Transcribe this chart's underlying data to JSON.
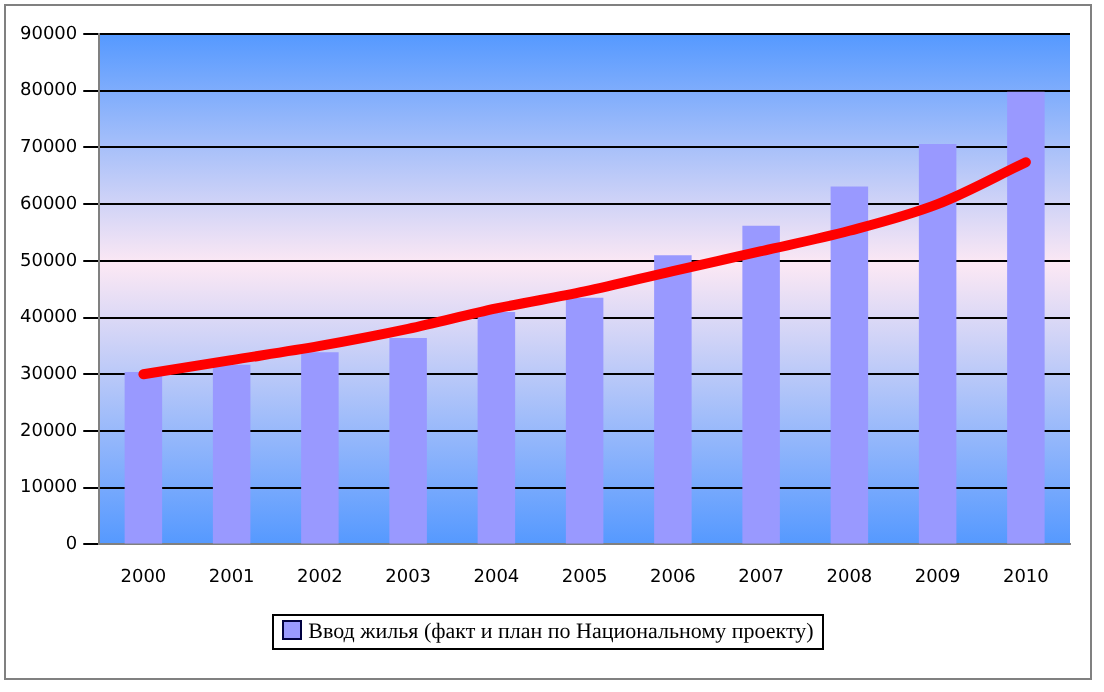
{
  "chart_data": {
    "type": "bar",
    "categories": [
      "2000",
      "2001",
      "2002",
      "2003",
      "2004",
      "2005",
      "2006",
      "2007",
      "2008",
      "2009",
      "2010"
    ],
    "series": [
      {
        "name": "Ввод жилья (факт и план по Национальному проекту)",
        "color": "#9999ff",
        "values": [
          30400,
          31700,
          33900,
          36400,
          41000,
          43500,
          51000,
          56200,
          63100,
          70600,
          79800
        ]
      },
      {
        "type": "line",
        "color": "#ff0000",
        "values": [
          30000,
          32500,
          35000,
          38000,
          41600,
          44600,
          48200,
          51700,
          55300,
          60000,
          67400
        ]
      }
    ],
    "ylim": [
      0,
      90000
    ],
    "yticks": [
      0,
      10000,
      20000,
      30000,
      40000,
      50000,
      60000,
      70000,
      80000,
      90000
    ],
    "grid": "y",
    "legend": "bottom",
    "marker": "none",
    "line_style": "solid"
  }
}
